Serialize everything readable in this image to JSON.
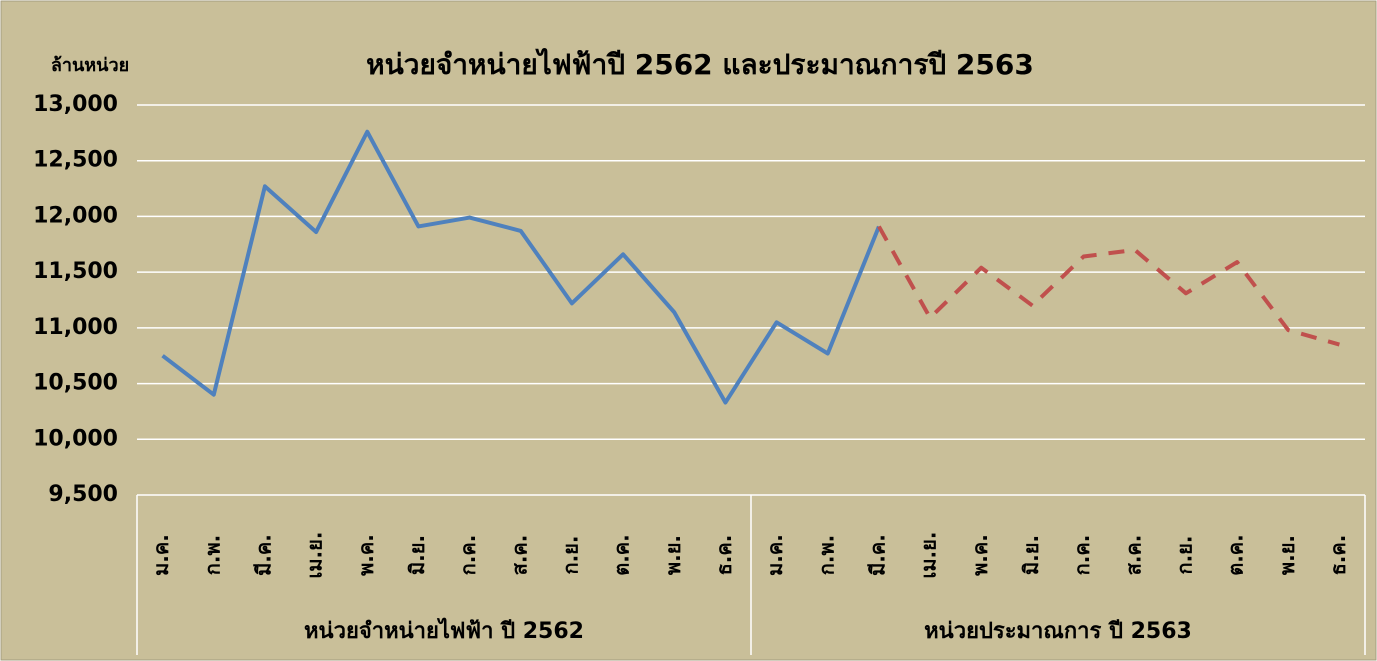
{
  "chart_data": {
    "type": "line",
    "title": "หน่วยจำหน่ายไฟฟ้าปี 2562 และประมาณการปี 2563",
    "y_label": "ล้านหน่วย",
    "categories": [
      "ม.ค.",
      "ก.พ.",
      "มี.ค.",
      "เม.ย.",
      "พ.ค.",
      "มิ.ย.",
      "ก.ค.",
      "ส.ค.",
      "ก.ย.",
      "ต.ค.",
      "พ.ย.",
      "ธ.ค.",
      "ม.ค.",
      "ก.พ.",
      "มี.ค.",
      "เม.ย.",
      "พ.ค.",
      "มิ.ย.",
      "ก.ค.",
      "ส.ค.",
      "ก.ย.",
      "ต.ค.",
      "พ.ย.",
      "ธ.ค."
    ],
    "groups": [
      "หน่วยจำหน่ายไฟฟ้า ปี 2562",
      "หน่วยประมาณการ ปี 2563"
    ],
    "series": [
      {
        "color": "#4f81bd",
        "dashed": false,
        "values": [
          10750,
          10400,
          12270,
          11860,
          12760,
          11910,
          11990,
          11870,
          11220,
          11660,
          11140,
          10330,
          11050,
          10770,
          11910,
          null,
          null,
          null,
          null,
          null,
          null,
          null,
          null,
          null
        ]
      },
      {
        "color": "#c0504d",
        "dashed": true,
        "values": [
          null,
          null,
          null,
          null,
          null,
          null,
          null,
          null,
          null,
          null,
          null,
          null,
          null,
          null,
          11910,
          11090,
          11540,
          11200,
          11640,
          11700,
          11310,
          11590,
          10980,
          10850
        ]
      }
    ],
    "ylim": [
      9500,
      13000
    ],
    "yticks": [
      {
        "value": 9500,
        "label": "9,500"
      },
      {
        "value": 10000,
        "label": "10,000"
      },
      {
        "value": 10500,
        "label": "10,500"
      },
      {
        "value": 11000,
        "label": "11,000"
      },
      {
        "value": 11500,
        "label": "11,500"
      },
      {
        "value": 12000,
        "label": "12,000"
      },
      {
        "value": 12500,
        "label": "12,500"
      },
      {
        "value": 13000,
        "label": "13,000"
      }
    ],
    "grid": true
  }
}
